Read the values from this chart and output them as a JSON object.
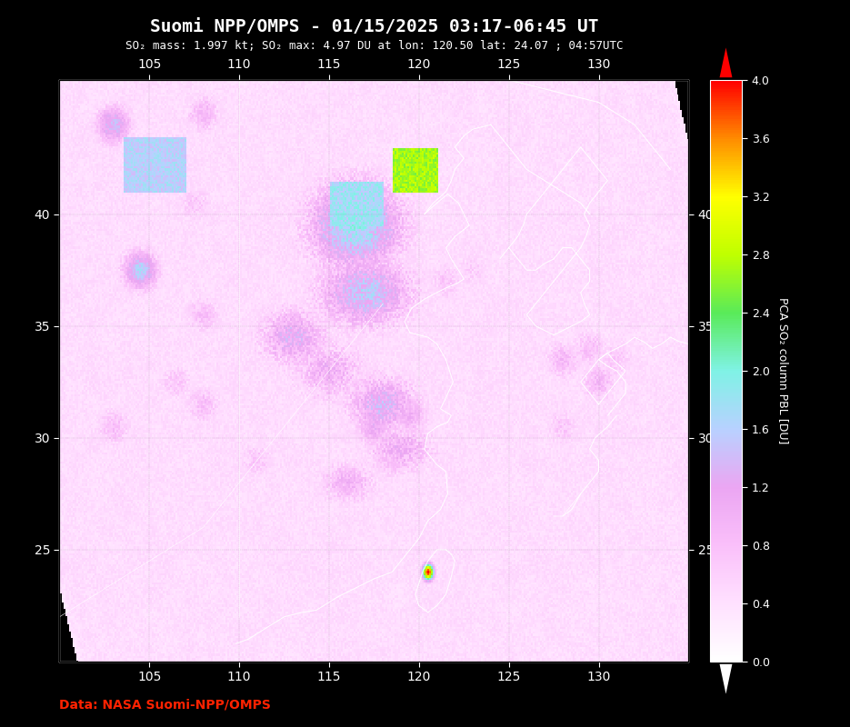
{
  "title": "Suomi NPP/OMPS - 01/15/2025 03:17-06:45 UT",
  "subtitle": "SO₂ mass: 1.997 kt; SO₂ max: 4.97 DU at lon: 120.50 lat: 24.07 ; 04:57UTC",
  "data_credit": "Data: NASA Suomi-NPP/OMPS",
  "data_credit_color": "#ff2200",
  "colorbar_label": "PCA SO₂ column PBL [DU]",
  "lon_min": 100,
  "lon_max": 135,
  "lat_min": 20,
  "lat_max": 46,
  "lon_ticks": [
    105,
    110,
    115,
    120,
    125,
    130
  ],
  "lat_ticks": [
    25,
    30,
    35,
    40
  ],
  "vmin": 0.0,
  "vmax": 4.0,
  "colorbar_ticks": [
    0.0,
    0.4,
    0.8,
    1.2,
    1.6,
    2.0,
    2.4,
    2.8,
    3.2,
    3.6,
    4.0
  ],
  "background_color": "#000000",
  "title_fontsize": 14,
  "subtitle_fontsize": 9,
  "tick_fontsize": 10
}
